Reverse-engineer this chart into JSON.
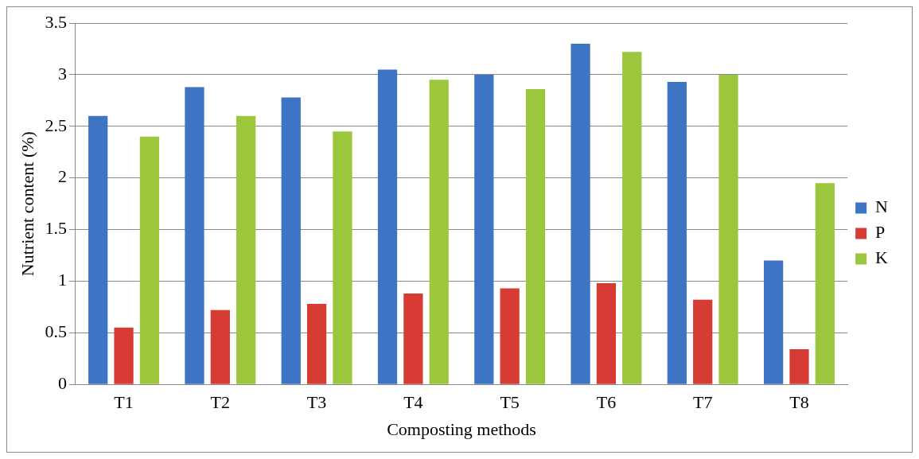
{
  "chart_data": {
    "type": "bar",
    "xlabel": "Composting methods",
    "ylabel": "Nutrient content (%)",
    "categories": [
      "T1",
      "T2",
      "T3",
      "T4",
      "T5",
      "T6",
      "T7",
      "T8"
    ],
    "series": [
      {
        "name": "N",
        "color": "#3e74c4",
        "values": [
          2.6,
          2.88,
          2.78,
          3.05,
          3.0,
          3.3,
          2.93,
          1.2
        ]
      },
      {
        "name": "P",
        "color": "#d63c34",
        "values": [
          0.55,
          0.72,
          0.78,
          0.88,
          0.93,
          0.98,
          0.82,
          0.34
        ]
      },
      {
        "name": "K",
        "color": "#9cc63c",
        "values": [
          2.4,
          2.6,
          2.45,
          2.95,
          2.86,
          3.22,
          3.0,
          1.95
        ]
      }
    ],
    "ylim": [
      0,
      3.5
    ],
    "yticks": [
      0,
      0.5,
      1,
      1.5,
      2,
      2.5,
      3,
      3.5
    ],
    "grid": "y",
    "legend": "right"
  }
}
